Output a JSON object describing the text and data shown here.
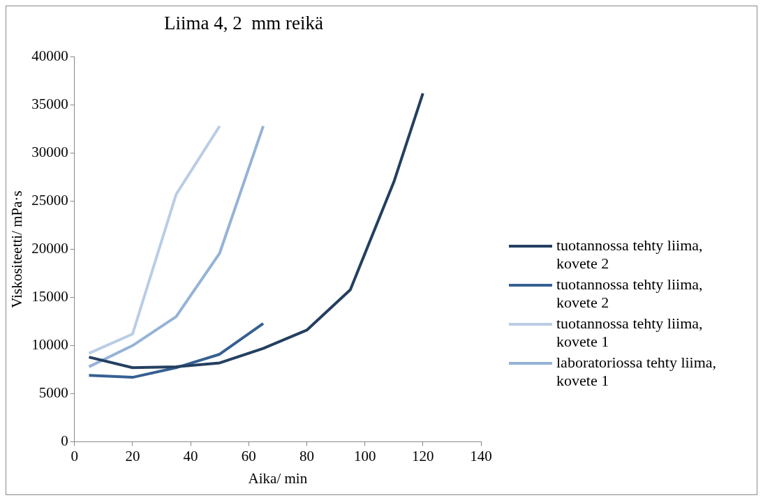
{
  "chart_data": {
    "type": "line",
    "title": "Liima 4, 2  mm reikä",
    "xlabel": "Aika/ min",
    "ylabel": "Viskositeetti/ mPa·s",
    "xlim": [
      0,
      140
    ],
    "xticks": [
      0,
      20,
      40,
      60,
      80,
      100,
      120,
      140
    ],
    "ylim": [
      0,
      40000
    ],
    "yticks": [
      0,
      5000,
      10000,
      15000,
      20000,
      25000,
      30000,
      35000,
      40000
    ],
    "grid": false,
    "legend": "right",
    "marker": "none",
    "line_style": "solid",
    "series": [
      {
        "name": "tuotannossa tehty liima, kovete 2",
        "color": "#243f60",
        "x": [
          5,
          20,
          35,
          50,
          65,
          80,
          95,
          110,
          120
        ],
        "values": [
          8800,
          7700,
          7800,
          8200,
          9700,
          11600,
          15800,
          27000,
          36200
        ]
      },
      {
        "name": "tuotannossa tehty liima, kovete 2",
        "color": "#376092",
        "x": [
          5,
          20,
          35,
          50,
          65
        ],
        "values": [
          6900,
          6700,
          7700,
          9100,
          12300
        ]
      },
      {
        "name": "tuotannossa tehty liima, kovete 1",
        "color": "#b9cde5",
        "x": [
          5,
          20,
          35,
          50
        ],
        "values": [
          9200,
          11200,
          25700,
          32800
        ]
      },
      {
        "name": "laboratoriossa tehty liima, kovete 1",
        "color": "#95b3d7",
        "x": [
          5,
          20,
          35,
          50,
          65
        ],
        "values": [
          7800,
          10000,
          13000,
          19600,
          32800
        ]
      }
    ]
  }
}
